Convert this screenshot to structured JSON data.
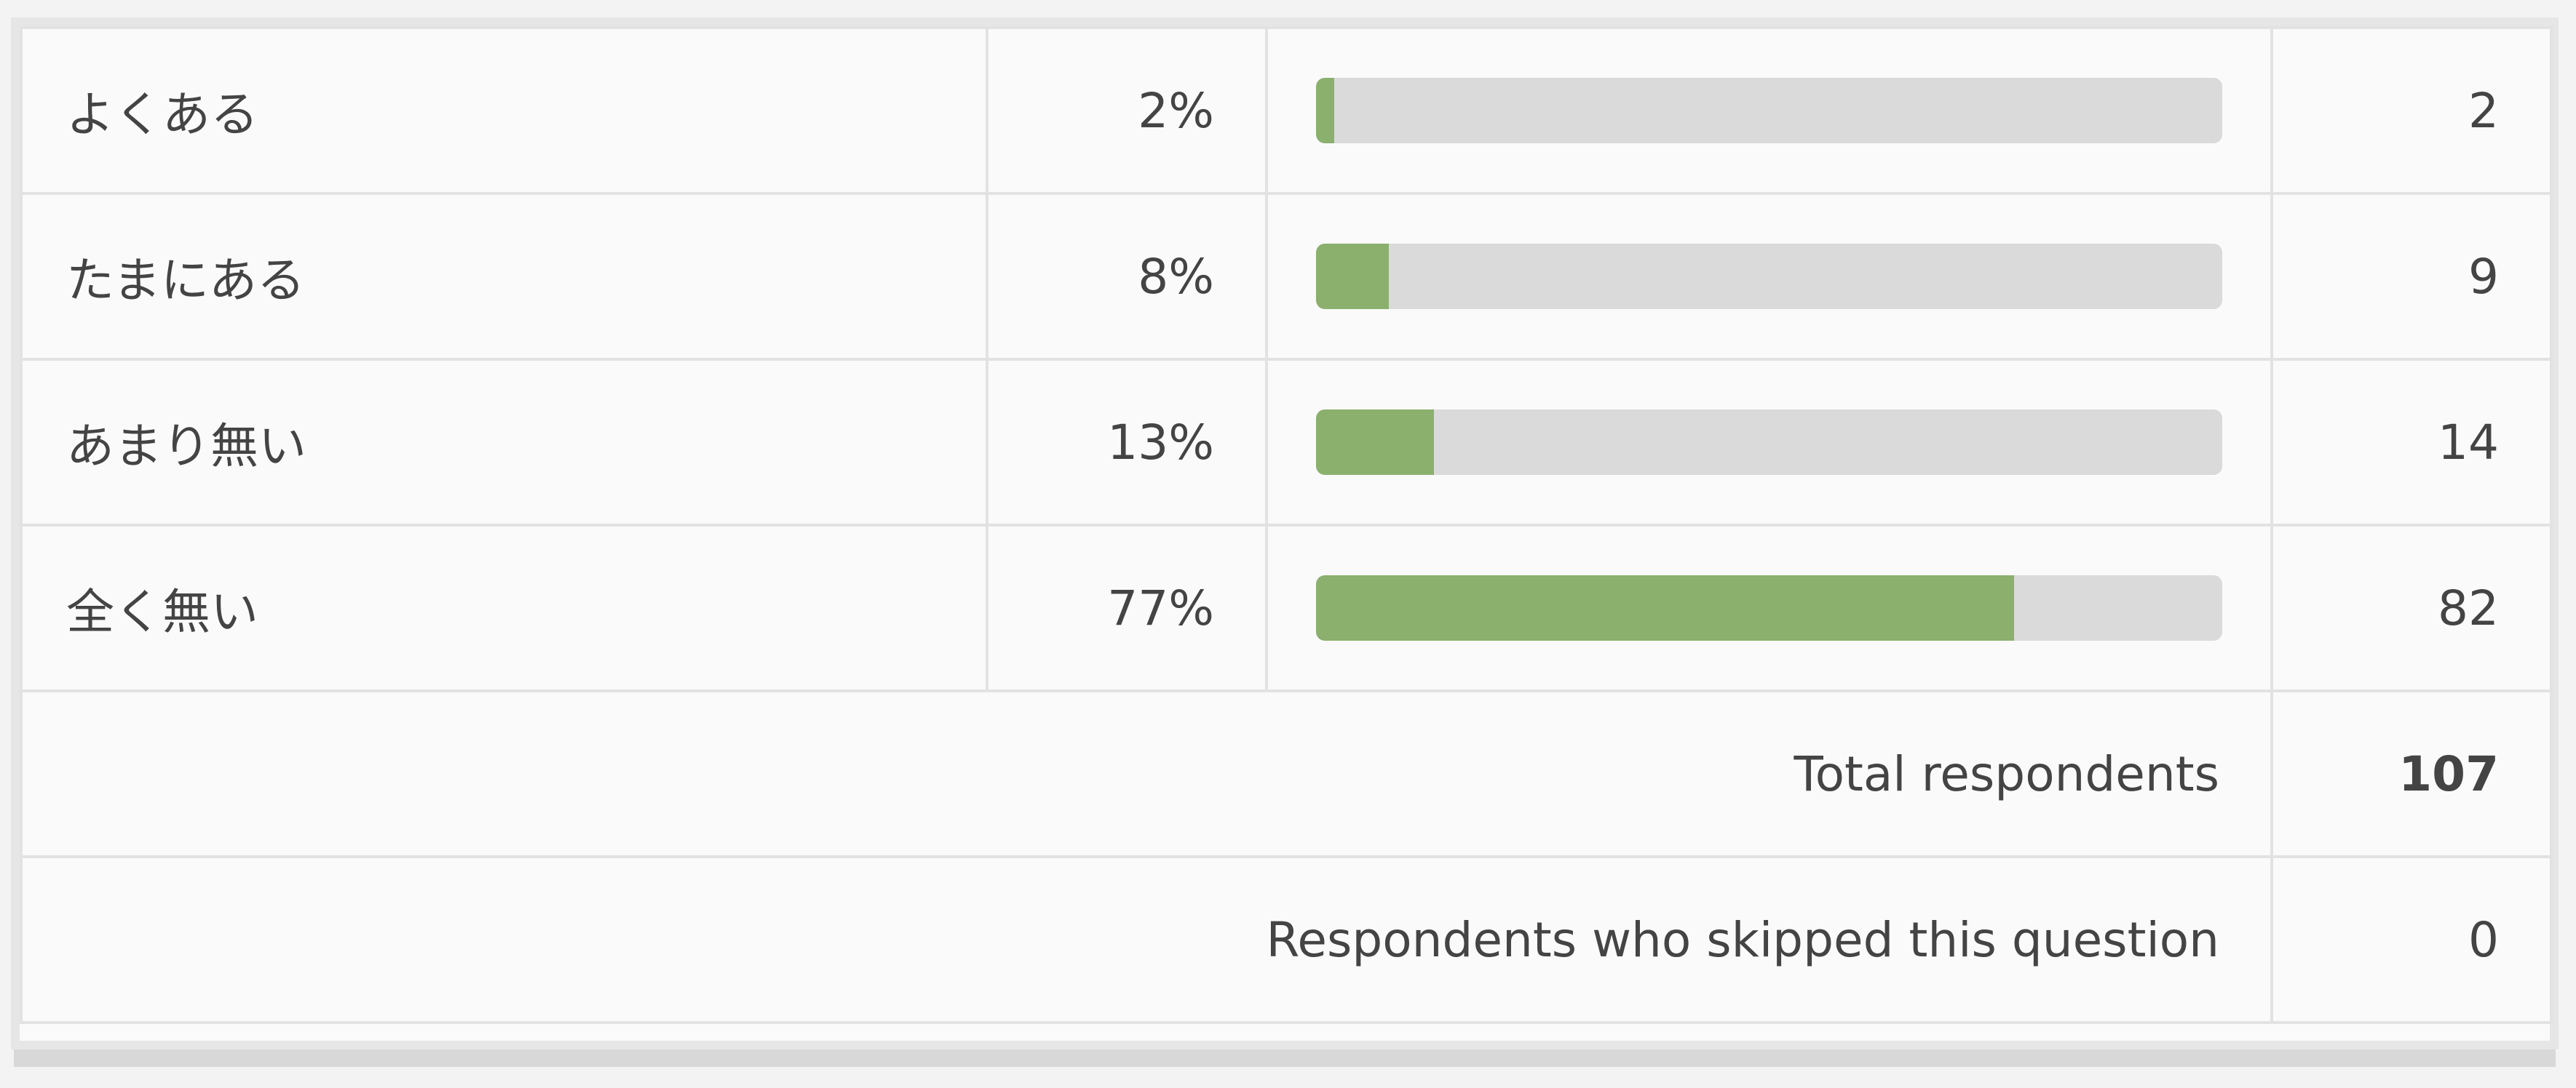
{
  "xlim": [
    0,
    100
  ],
  "rows": [
    {
      "label": "よくある",
      "percent": 2,
      "percent_label": "2%",
      "count": 2
    },
    {
      "label": "たまにある",
      "percent": 8,
      "percent_label": "8%",
      "count": 9
    },
    {
      "label": "あまり無い",
      "percent": 13,
      "percent_label": "13%",
      "count": 14
    },
    {
      "label": "全く無い",
      "percent": 77,
      "percent_label": "77%",
      "count": 82
    }
  ],
  "totals": [
    {
      "label": "Total respondents",
      "value": 107
    },
    {
      "label": "Respondents who skipped this question",
      "value": 0
    }
  ]
}
